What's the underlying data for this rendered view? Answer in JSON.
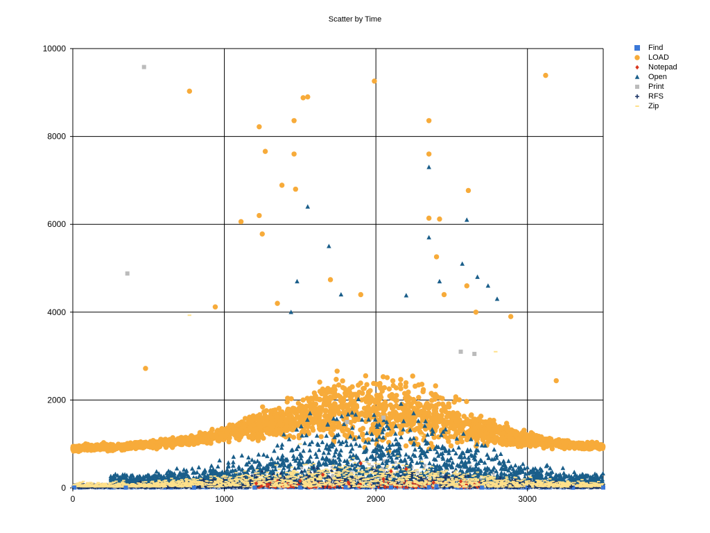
{
  "chart_data": {
    "type": "scatter",
    "title": "Scatter by Time",
    "xlabel": "",
    "ylabel": "",
    "xlim": [
      0,
      3500
    ],
    "ylim": [
      0,
      10000
    ],
    "x_ticks": [
      "0",
      "1000",
      "2000",
      "3000"
    ],
    "y_ticks": [
      "0",
      "2000",
      "4000",
      "6000",
      "8000",
      "10000"
    ],
    "grid": true,
    "legend_position": "top-right",
    "series": [
      {
        "name": "Find",
        "color": "#3b78d8",
        "marker": "square",
        "points": [
          [
            10,
            8
          ],
          [
            350,
            6
          ],
          [
            800,
            5
          ],
          [
            1200,
            7
          ],
          [
            1500,
            10
          ],
          [
            1800,
            12
          ],
          [
            2100,
            9
          ],
          [
            2350,
            15
          ],
          [
            2400,
            40
          ],
          [
            2700,
            8
          ],
          [
            3000,
            6
          ],
          [
            3300,
            5
          ],
          [
            3500,
            8
          ]
        ]
      },
      {
        "name": "LOAD",
        "color": "#f7ab3a",
        "marker": "circle",
        "points": [
          [
            770,
            9030
          ],
          [
            940,
            4120
          ],
          [
            480,
            2720
          ],
          [
            1110,
            6060
          ],
          [
            1230,
            8220
          ],
          [
            1230,
            6200
          ],
          [
            1250,
            5780
          ],
          [
            1270,
            7660
          ],
          [
            1380,
            6890
          ],
          [
            1460,
            8360
          ],
          [
            1460,
            7600
          ],
          [
            1470,
            6800
          ],
          [
            1520,
            8880
          ],
          [
            1550,
            8900
          ],
          [
            1990,
            9260
          ],
          [
            2350,
            8360
          ],
          [
            2350,
            7600
          ],
          [
            2350,
            6140
          ],
          [
            2420,
            6120
          ],
          [
            2400,
            5260
          ],
          [
            2610,
            6770
          ],
          [
            3120,
            9390
          ],
          [
            3190,
            2440
          ],
          [
            1700,
            4740
          ],
          [
            1900,
            4400
          ],
          [
            2450,
            4400
          ],
          [
            2660,
            4000
          ],
          [
            2890,
            3900
          ],
          [
            1350,
            4200
          ],
          [
            2600,
            4600
          ]
        ]
      },
      {
        "name": "Notepad",
        "color": "#d9361e",
        "marker": "diamond",
        "points": [
          [
            1210,
            100
          ],
          [
            1500,
            160
          ],
          [
            1820,
            110
          ],
          [
            2050,
            200
          ],
          [
            2380,
            120
          ],
          [
            2560,
            150
          ],
          [
            2100,
            380
          ],
          [
            1900,
            560
          ],
          [
            2200,
            430
          ],
          [
            1650,
            300
          ]
        ]
      },
      {
        "name": "Open",
        "color": "#1a5e8a",
        "marker": "triangle",
        "points": [
          [
            1550,
            6400
          ],
          [
            1690,
            5500
          ],
          [
            2350,
            7300
          ],
          [
            2350,
            5700
          ],
          [
            2600,
            6100
          ],
          [
            2570,
            5100
          ],
          [
            1480,
            4700
          ],
          [
            2420,
            4700
          ],
          [
            2670,
            4800
          ],
          [
            2740,
            4600
          ],
          [
            1440,
            4000
          ],
          [
            1770,
            4400
          ],
          [
            2200,
            4380
          ],
          [
            2800,
            4300
          ]
        ]
      },
      {
        "name": "Print",
        "color": "#bbbbbb",
        "marker": "square",
        "points": [
          [
            470,
            9580
          ],
          [
            360,
            4880
          ],
          [
            2560,
            3100
          ],
          [
            2650,
            3050
          ],
          [
            1810,
            1500
          ],
          [
            2050,
            1600
          ]
        ]
      },
      {
        "name": "RFS",
        "color": "#1b3566",
        "marker": "plus",
        "points": [
          [
            2620,
            40
          ],
          [
            3010,
            35
          ],
          [
            3290,
            30
          ]
        ]
      },
      {
        "name": "Zip",
        "color": "#ffe08a",
        "marker": "dash",
        "points": [
          [
            770,
            3930
          ],
          [
            2790,
            3100
          ],
          [
            1500,
            1000
          ],
          [
            2300,
            1200
          ]
        ]
      }
    ]
  }
}
